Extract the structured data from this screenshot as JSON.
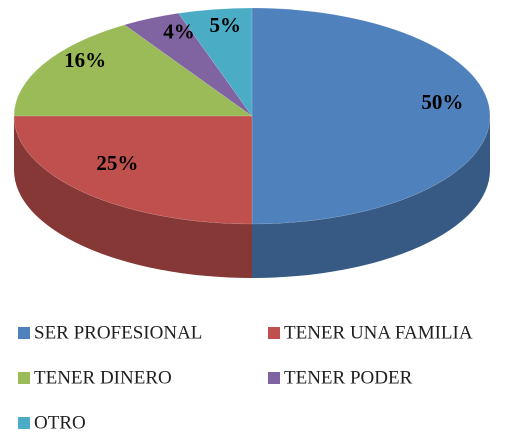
{
  "chart_data": {
    "type": "pie",
    "categories": [
      "SER PROFESIONAL",
      "TENER UNA FAMILIA",
      "TENER DINERO",
      "TENER PODER",
      "OTRO"
    ],
    "values": [
      50,
      25,
      16,
      4,
      5
    ],
    "value_labels": [
      "50%",
      "25%",
      "16%",
      "4%",
      "5%"
    ],
    "colors": [
      "#4f81bd",
      "#c0504d",
      "#9bbb59",
      "#8064a2",
      "#4bacc6"
    ],
    "legend": "bottom"
  }
}
